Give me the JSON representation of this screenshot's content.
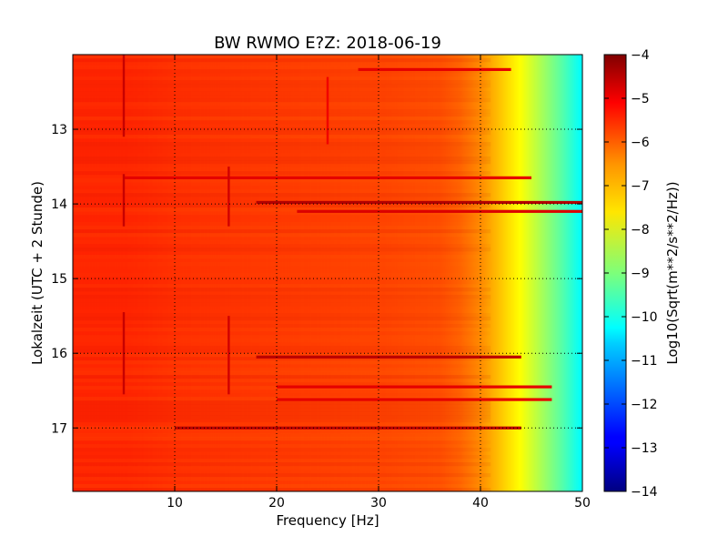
{
  "chart_data": {
    "type": "heatmap",
    "title": "BW RWMO E?Z: 2018-06-19",
    "xlabel": "Frequency [Hz]",
    "ylabel": "Lokalzeit (UTC + 2 Stunde)",
    "xlim": [
      0,
      50
    ],
    "ylim": [
      17.85,
      12.0
    ],
    "x_ticks": [
      10,
      20,
      30,
      40,
      50
    ],
    "x_tick_labels": [
      "10",
      "20",
      "30",
      "40",
      "50"
    ],
    "y_ticks": [
      13,
      14,
      15,
      16,
      17
    ],
    "y_tick_labels": [
      "13",
      "14",
      "15",
      "16",
      "17"
    ],
    "grid": true,
    "colorbar": {
      "label": "Log10(Sqrt(m**2/s**2/Hz))",
      "range": [
        -14,
        -4
      ],
      "ticks": [
        -4,
        -5,
        -6,
        -7,
        -8,
        -9,
        -10,
        -11,
        -12,
        -13,
        -14
      ],
      "tick_labels": [
        "−4",
        "−5",
        "−6",
        "−7",
        "−8",
        "−9",
        "−10",
        "−11",
        "−12",
        "−13",
        "−14"
      ],
      "colormap": "jet"
    },
    "frequency_profile": {
      "x": [
        0,
        5,
        10,
        20,
        30,
        36,
        38,
        40,
        42,
        44,
        46,
        48,
        50
      ],
      "values": [
        -5.6,
        -5.6,
        -5.7,
        -5.8,
        -5.9,
        -6.0,
        -6.2,
        -6.6,
        -7.2,
        -7.8,
        -8.6,
        -9.4,
        -10.3
      ]
    },
    "strong_horizontal_lines": [
      {
        "time": 12.2,
        "from_hz": 28,
        "to_hz": 43,
        "level": -5.0
      },
      {
        "time": 13.65,
        "from_hz": 5,
        "to_hz": 45,
        "level": -5.0
      },
      {
        "time": 13.98,
        "from_hz": 18,
        "to_hz": 50,
        "level": -4.5
      },
      {
        "time": 14.1,
        "from_hz": 22,
        "to_hz": 50,
        "level": -4.9
      },
      {
        "time": 16.05,
        "from_hz": 18,
        "to_hz": 44,
        "level": -4.6
      },
      {
        "time": 16.45,
        "from_hz": 20,
        "to_hz": 47,
        "level": -5.0
      },
      {
        "time": 16.62,
        "from_hz": 20,
        "to_hz": 47,
        "level": -5.0
      },
      {
        "time": 17.0,
        "from_hz": 10,
        "to_hz": 44,
        "level": -4.6
      }
    ],
    "strong_vertical_lines": [
      {
        "freq": 5.0,
        "from_time": 12.0,
        "to_time": 13.1,
        "level": -4.7
      },
      {
        "freq": 5.0,
        "from_time": 13.6,
        "to_time": 14.3,
        "level": -4.7
      },
      {
        "freq": 5.0,
        "from_time": 15.45,
        "to_time": 16.55,
        "level": -4.7
      },
      {
        "freq": 15.3,
        "from_time": 13.5,
        "to_time": 14.3,
        "level": -4.8
      },
      {
        "freq": 15.3,
        "from_time": 15.5,
        "to_time": 16.55,
        "level": -4.8
      },
      {
        "freq": 25.0,
        "from_time": 12.3,
        "to_time": 13.2,
        "level": -5.1
      }
    ]
  }
}
